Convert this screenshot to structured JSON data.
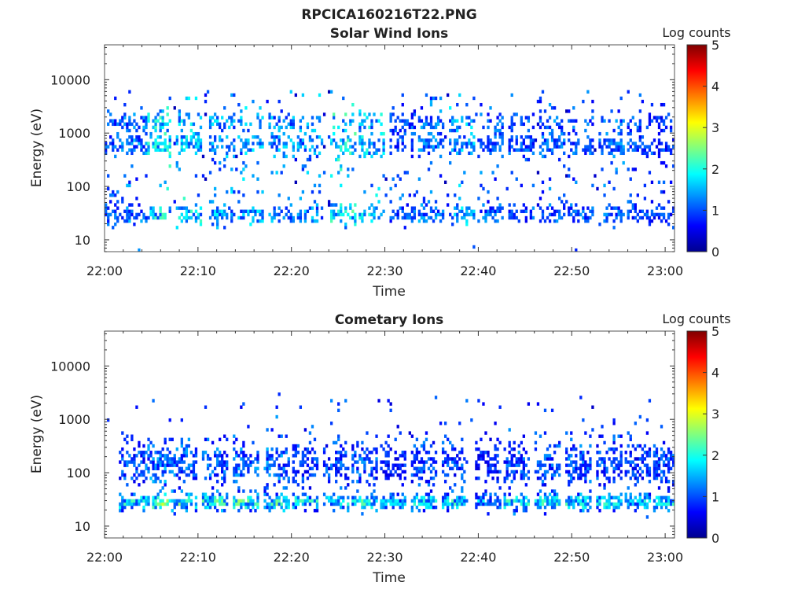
{
  "figure": {
    "title": "RPCICA160216T22.PNG"
  },
  "colormap": [
    "#00008f",
    "#0000ff",
    "#00ffff",
    "#ffff00",
    "#ff0000",
    "#800000"
  ],
  "chart_data": [
    {
      "type": "heatmap",
      "title": "Solar Wind Ions",
      "xlabel": "Time",
      "ylabel": "Energy (eV)",
      "xlim": [
        0,
        61
      ],
      "xticks": [
        0,
        10,
        20,
        30,
        40,
        50,
        60
      ],
      "xticklabels": [
        "22:00",
        "22:10",
        "22:20",
        "22:30",
        "22:40",
        "22:50",
        "23:00"
      ],
      "yscale": "log",
      "ylim": [
        6,
        45000
      ],
      "yticks": [
        10,
        100,
        1000,
        10000
      ],
      "yticklabels": [
        "10",
        "100",
        "1000",
        "10000"
      ],
      "colorbar": {
        "label": "Log counts",
        "range": [
          0,
          5
        ],
        "ticks": [
          0,
          1,
          2,
          3,
          4,
          5
        ],
        "ticklabels": [
          "0",
          "1",
          "2",
          "3",
          "4",
          "5"
        ]
      },
      "bursts": [
        {
          "t": 0.5,
          "peak": 1.4
        },
        {
          "t": 3.2,
          "peak": 1.6
        },
        {
          "t": 5.8,
          "peak": 2.3
        },
        {
          "t": 9.0,
          "peak": 2.2
        },
        {
          "t": 12.5,
          "peak": 1.9
        },
        {
          "t": 15.6,
          "peak": 1.9
        },
        {
          "t": 18.9,
          "peak": 1.8
        },
        {
          "t": 22.1,
          "peak": 1.8
        },
        {
          "t": 25.5,
          "peak": 2.4
        },
        {
          "t": 28.6,
          "peak": 2.1
        },
        {
          "t": 31.8,
          "peak": 1.4
        },
        {
          "t": 35.0,
          "peak": 1.6
        },
        {
          "t": 38.2,
          "peak": 1.9
        },
        {
          "t": 41.4,
          "peak": 1.5
        },
        {
          "t": 44.6,
          "peak": 1.4
        },
        {
          "t": 47.8,
          "peak": 1.5
        },
        {
          "t": 51.0,
          "peak": 1.4
        },
        {
          "t": 54.2,
          "peak": 1.5
        },
        {
          "t": 57.2,
          "peak": 1.3
        },
        {
          "t": 60.2,
          "peak": 1.2
        }
      ]
    },
    {
      "type": "heatmap",
      "title": "Cometary Ions",
      "xlabel": "Time",
      "ylabel": "Energy (eV)",
      "xlim": [
        0,
        61
      ],
      "xticks": [
        0,
        10,
        20,
        30,
        40,
        50,
        60
      ],
      "xticklabels": [
        "22:00",
        "22:10",
        "22:20",
        "22:30",
        "22:40",
        "22:50",
        "23:00"
      ],
      "yscale": "log",
      "ylim": [
        6,
        45000
      ],
      "yticks": [
        10,
        100,
        1000,
        10000
      ],
      "yticklabels": [
        "10",
        "100",
        "1000",
        "10000"
      ],
      "colorbar": {
        "label": "Log counts",
        "range": [
          0,
          5
        ],
        "ticks": [
          0,
          1,
          2,
          3,
          4,
          5
        ],
        "ticklabels": [
          "0",
          "1",
          "2",
          "3",
          "4",
          "5"
        ]
      },
      "bursts": [
        {
          "t": 2.8,
          "peak": 2.4
        },
        {
          "t": 5.6,
          "peak": 3.0
        },
        {
          "t": 8.6,
          "peak": 2.7
        },
        {
          "t": 11.8,
          "peak": 2.7
        },
        {
          "t": 15.0,
          "peak": 2.8
        },
        {
          "t": 18.4,
          "peak": 2.8
        },
        {
          "t": 21.6,
          "peak": 2.4
        },
        {
          "t": 24.8,
          "peak": 2.4
        },
        {
          "t": 27.9,
          "peak": 2.6
        },
        {
          "t": 31.0,
          "peak": 2.0
        },
        {
          "t": 34.3,
          "peak": 2.4
        },
        {
          "t": 37.5,
          "peak": 2.4
        },
        {
          "t": 41.0,
          "peak": 2.0
        },
        {
          "t": 44.2,
          "peak": 2.5
        },
        {
          "t": 47.5,
          "peak": 2.5
        },
        {
          "t": 50.6,
          "peak": 2.6
        },
        {
          "t": 53.9,
          "peak": 2.5
        },
        {
          "t": 57.0,
          "peak": 2.3
        },
        {
          "t": 60.0,
          "peak": 2.4
        }
      ]
    }
  ]
}
